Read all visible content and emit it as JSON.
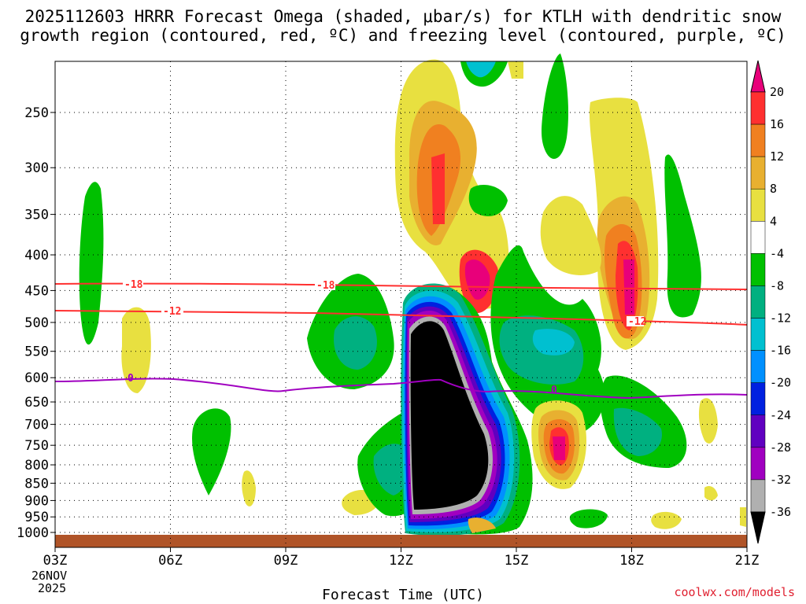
{
  "title_line1": "2025112603 HRRR Forecast Omega (shaded, μbar/s) for KTLH with dendritic snow",
  "title_line2": "growth region (contoured, red, ºC) and freezing level (contoured, purple, ºC)",
  "xlabel": "Forecast Time (UTC)",
  "credit": "coolwx.com/models",
  "date_day": "26NOV",
  "date_year": "2025",
  "chart_data": {
    "type": "heatmap",
    "x_ticks": [
      "03Z",
      "06Z",
      "09Z",
      "12Z",
      "15Z",
      "18Z",
      "21Z"
    ],
    "x_range_hours": [
      3,
      21
    ],
    "y_levels_hPa": [
      "250",
      "300",
      "350",
      "400",
      "450",
      "500",
      "550",
      "600",
      "650",
      "700",
      "750",
      "800",
      "850",
      "900",
      "950",
      "1000"
    ],
    "colorbar": {
      "labels": [
        "20",
        "16",
        "12",
        "8",
        "4",
        "-4",
        "-8",
        "-12",
        "-16",
        "-20",
        "-24",
        "-28",
        "-32",
        "-36"
      ],
      "colors": [
        "#e8007a",
        "#ff3030",
        "#f08020",
        "#e8b030",
        "#e8e040",
        "#ffffff",
        "#00c000",
        "#00b080",
        "#00c0d0",
        "#0090ff",
        "#0020e0",
        "#6000c0",
        "#a000c0",
        "#b0b0b0",
        "#000000"
      ]
    },
    "contours": [
      {
        "label": "-18",
        "color": "#ff3030",
        "label_positions_hour": [
          5.1,
          10.0
        ]
      },
      {
        "label": "-12",
        "color": "#ff3030",
        "label_positions_hour": [
          6.1,
          18.1
        ]
      },
      {
        "label": "0",
        "color": "#a000c0",
        "label_positions_hour": [
          5.0,
          16.0
        ]
      }
    ]
  }
}
